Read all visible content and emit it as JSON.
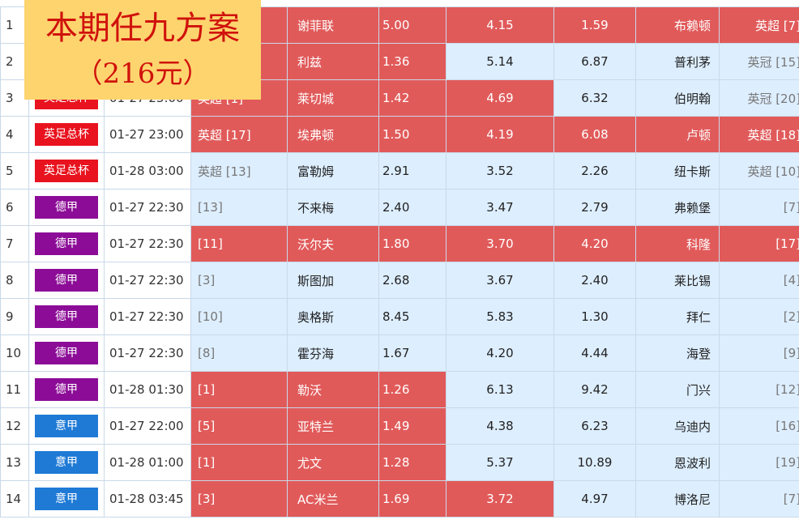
{
  "banner": {
    "title": "本期任九方案",
    "amount": "（216元）"
  },
  "colors": {
    "英足总杯": "#e8131e",
    "德甲": "#8c0c97",
    "意甲": "#1f7ad6",
    "highlight": "#e15a5a",
    "plain": "#ddeeff"
  },
  "rows": [
    {
      "num": "1",
      "league": "",
      "time": "",
      "home_rank": "",
      "home": "谢菲联",
      "win": "5.00",
      "draw": "4.15",
      "lose": "1.59",
      "away": "布赖顿",
      "away_rank": "英超 [7]",
      "hl": {
        "home": true,
        "draw": true,
        "away": true
      }
    },
    {
      "num": "2",
      "league": "",
      "time": "",
      "home_rank": "",
      "home": "利兹",
      "win": "1.36",
      "draw": "5.14",
      "lose": "6.87",
      "away": "普利茅",
      "away_rank": "英冠 [15]",
      "hl": {
        "home": true,
        "draw": false,
        "away": false
      }
    },
    {
      "num": "3",
      "league": "英足总杯",
      "time": "01-27 23:00",
      "home_rank": "英超 [1]",
      "home": "莱切城",
      "win": "1.42",
      "draw": "4.69",
      "lose": "6.32",
      "away": "伯明翰",
      "away_rank": "英冠 [20]",
      "hl": {
        "home": true,
        "draw": true,
        "away": false
      }
    },
    {
      "num": "4",
      "league": "英足总杯",
      "time": "01-27 23:00",
      "home_rank": "英超 [17]",
      "home": "埃弗顿",
      "win": "1.50",
      "draw": "4.19",
      "lose": "6.08",
      "away": "卢顿",
      "away_rank": "英超 [18]",
      "hl": {
        "home": true,
        "draw": true,
        "away": true
      }
    },
    {
      "num": "5",
      "league": "英足总杯",
      "time": "01-28 03:00",
      "home_rank": "英超 [13]",
      "home": "富勒姆",
      "win": "2.91",
      "draw": "3.52",
      "lose": "2.26",
      "away": "纽卡斯",
      "away_rank": "英超 [10]",
      "hl": {
        "home": false,
        "draw": false,
        "away": false
      }
    },
    {
      "num": "6",
      "league": "德甲",
      "time": "01-27 22:30",
      "home_rank": "[13]",
      "home": "不来梅",
      "win": "2.40",
      "draw": "3.47",
      "lose": "2.79",
      "away": "弗赖堡",
      "away_rank": "[7]",
      "hl": {
        "home": false,
        "draw": false,
        "away": false
      }
    },
    {
      "num": "7",
      "league": "德甲",
      "time": "01-27 22:30",
      "home_rank": "[11]",
      "home": "沃尔夫",
      "win": "1.80",
      "draw": "3.70",
      "lose": "4.20",
      "away": "科隆",
      "away_rank": "[17]",
      "hl": {
        "home": true,
        "draw": true,
        "away": true
      }
    },
    {
      "num": "8",
      "league": "德甲",
      "time": "01-27 22:30",
      "home_rank": "[3]",
      "home": "斯图加",
      "win": "2.68",
      "draw": "3.67",
      "lose": "2.40",
      "away": "莱比锡",
      "away_rank": "[4]",
      "hl": {
        "home": false,
        "draw": false,
        "away": false
      }
    },
    {
      "num": "9",
      "league": "德甲",
      "time": "01-27 22:30",
      "home_rank": "[10]",
      "home": "奥格斯",
      "win": "8.45",
      "draw": "5.83",
      "lose": "1.30",
      "away": "拜仁",
      "away_rank": "[2]",
      "hl": {
        "home": false,
        "draw": false,
        "away": false
      }
    },
    {
      "num": "10",
      "league": "德甲",
      "time": "01-27 22:30",
      "home_rank": "[8]",
      "home": "霍芬海",
      "win": "1.67",
      "draw": "4.20",
      "lose": "4.44",
      "away": "海登",
      "away_rank": "[9]",
      "hl": {
        "home": false,
        "draw": false,
        "away": false
      }
    },
    {
      "num": "11",
      "league": "德甲",
      "time": "01-28 01:30",
      "home_rank": "[1]",
      "home": "勒沃",
      "win": "1.26",
      "draw": "6.13",
      "lose": "9.42",
      "away": "门兴",
      "away_rank": "[12]",
      "hl": {
        "home": true,
        "draw": false,
        "away": false
      }
    },
    {
      "num": "12",
      "league": "意甲",
      "time": "01-27 22:00",
      "home_rank": "[5]",
      "home": "亚特兰",
      "win": "1.49",
      "draw": "4.38",
      "lose": "6.23",
      "away": "乌迪内",
      "away_rank": "[16]",
      "hl": {
        "home": true,
        "draw": false,
        "away": false
      }
    },
    {
      "num": "13",
      "league": "意甲",
      "time": "01-28 01:00",
      "home_rank": "[1]",
      "home": "尤文",
      "win": "1.28",
      "draw": "5.37",
      "lose": "10.89",
      "away": "恩波利",
      "away_rank": "[19]",
      "hl": {
        "home": true,
        "draw": false,
        "away": false
      }
    },
    {
      "num": "14",
      "league": "意甲",
      "time": "01-28 03:45",
      "home_rank": "[3]",
      "home": "AC米兰",
      "win": "1.69",
      "draw": "3.72",
      "lose": "4.97",
      "away": "博洛尼",
      "away_rank": "[7]",
      "hl": {
        "home": true,
        "draw": true,
        "away": false
      }
    }
  ]
}
